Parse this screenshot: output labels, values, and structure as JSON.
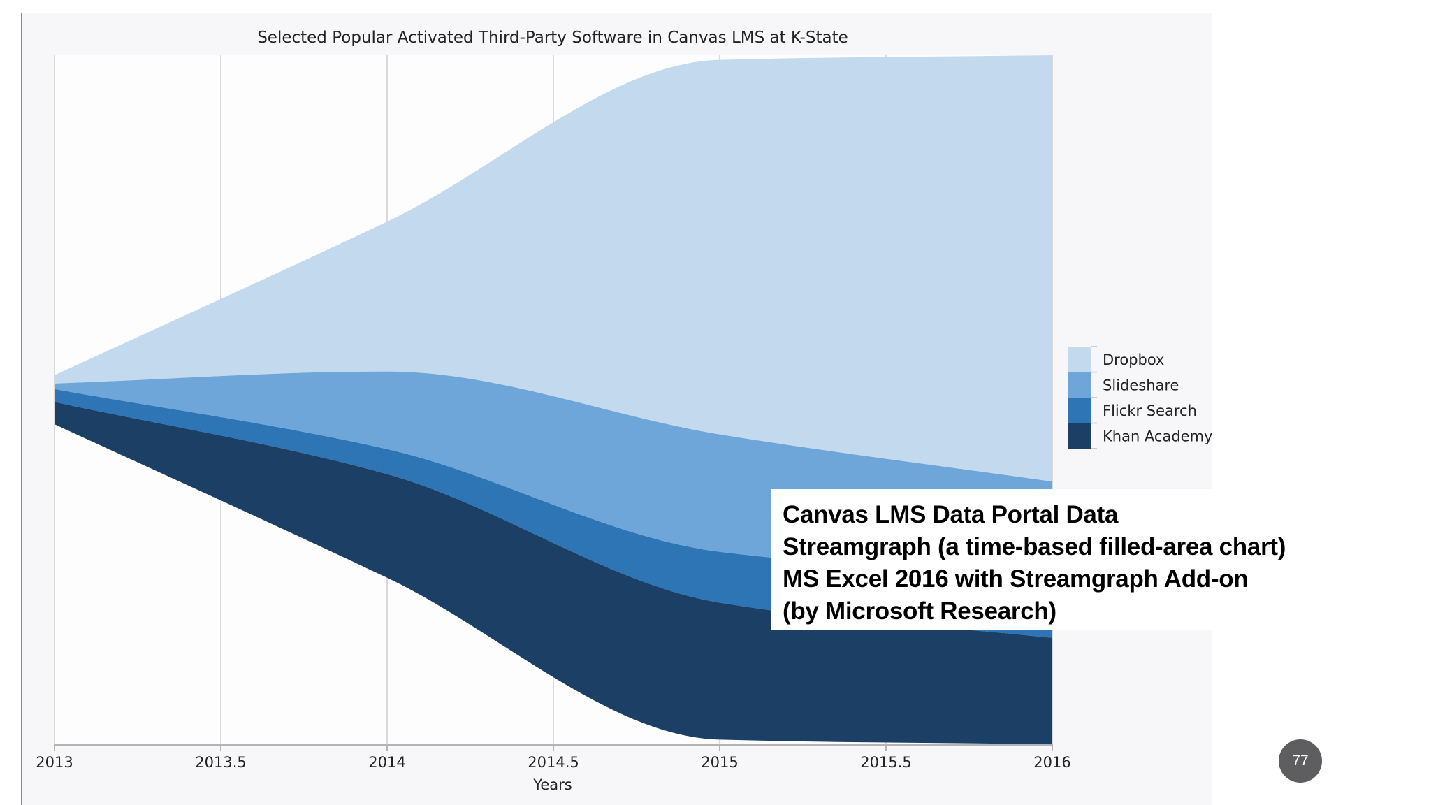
{
  "chart_data": {
    "type": "streamgraph",
    "title": "Selected Popular Activated Third-Party Software in Canvas LMS at K-State",
    "xlabel": "Years",
    "ylabel": "",
    "x": [
      2013,
      2014,
      2015,
      2016
    ],
    "xlim": [
      2013,
      2016
    ],
    "x_ticks": [
      "2013",
      "2013.5",
      "2014",
      "2014.5",
      "2015",
      "2015.5",
      "2016"
    ],
    "grid": "vertical",
    "legend_position": "right",
    "series": [
      {
        "name": "Dropbox",
        "color": "#c3d9ee",
        "values": [
          9,
          162,
          405,
          461
        ]
      },
      {
        "name": "Slideshare",
        "color": "#6fa6da",
        "values": [
          6,
          84,
          127,
          104
        ]
      },
      {
        "name": "Flickr Search",
        "color": "#2e75b6",
        "values": [
          14,
          27,
          55,
          65
        ]
      },
      {
        "name": "Khan Academy",
        "color": "#1c3f66",
        "values": [
          24,
          112,
          148,
          115
        ]
      }
    ]
  },
  "caption": {
    "lines": [
      "Canvas LMS Data Portal Data",
      "Streamgraph (a time-based filled-area chart)",
      "MS Excel 2016 with Streamgraph Add-on",
      "(by Microsoft Research)"
    ]
  },
  "page_number": "77"
}
